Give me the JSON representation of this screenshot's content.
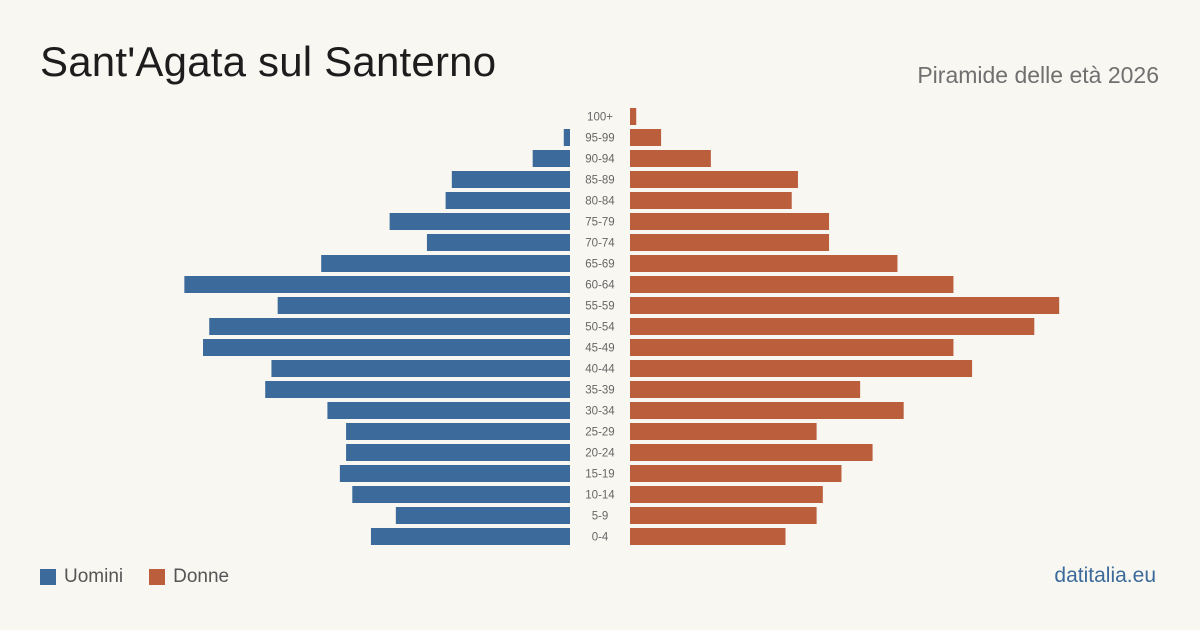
{
  "header": {
    "title": "Sant'Agata sul Santerno",
    "subtitle": "Piramide delle età 2026"
  },
  "legend": {
    "men_label": "Uomini",
    "women_label": "Donne"
  },
  "footer": {
    "brand": "datitalia.eu"
  },
  "colors": {
    "men": "#3b6a9b",
    "women": "#bb5e3c",
    "background": "#f9f7f2"
  },
  "chart_data": {
    "type": "bar",
    "orientation": "horizontal-diverging",
    "categories": [
      "100+",
      "95-99",
      "90-94",
      "85-89",
      "80-84",
      "75-79",
      "70-74",
      "65-69",
      "60-64",
      "55-59",
      "50-54",
      "45-49",
      "40-44",
      "35-39",
      "30-34",
      "25-29",
      "20-24",
      "15-19",
      "10-14",
      "5-9",
      "0-4"
    ],
    "series": [
      {
        "name": "Uomini",
        "values": [
          0,
          1,
          6,
          19,
          20,
          29,
          23,
          40,
          62,
          47,
          58,
          59,
          48,
          49,
          39,
          36,
          36,
          37,
          35,
          28,
          32
        ]
      },
      {
        "name": "Donne",
        "values": [
          1,
          5,
          13,
          27,
          26,
          32,
          32,
          43,
          52,
          69,
          65,
          52,
          55,
          37,
          44,
          30,
          39,
          34,
          31,
          30,
          25
        ]
      }
    ],
    "grid": false,
    "legend_position": "bottom-left"
  }
}
